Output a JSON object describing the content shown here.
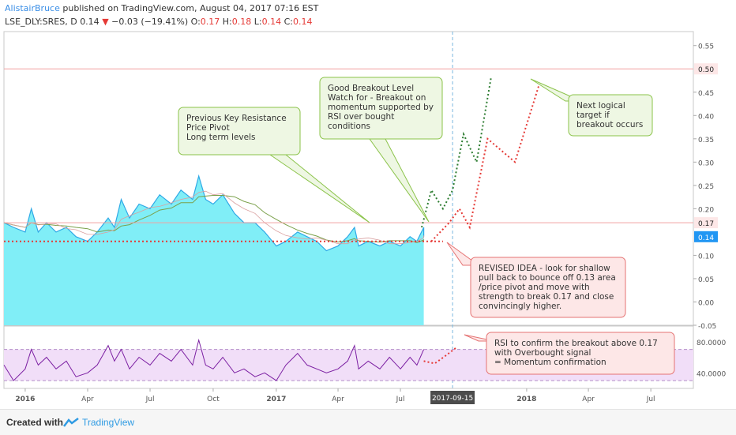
{
  "header": {
    "author": "AlistairBruce",
    "published_text": "published on TradingView.com, August 04, 2017 07:16 EST",
    "symbol": "LSE_DLY:SRES, D",
    "last": "0.14",
    "change_arrow": "▼",
    "change": "−0.03 (−19.41%)",
    "o_label": "O:",
    "o_value": "0.17",
    "h_label": "H:",
    "h_value": "0.18",
    "l_label": "L:",
    "l_value": "0.14",
    "c_label": "C:",
    "c_value": "0.14"
  },
  "footer": {
    "created_with": "Created with",
    "brand": "TradingView"
  },
  "colors": {
    "price_fill": "#80eef7",
    "price_line": "#2fa9e6",
    "rsi_line": "#7b1fa2",
    "rsi_band": "#f1def8",
    "projection_red": "#e53935",
    "projection_green": "#2e7d32",
    "marker_gray": "#4c4c4c"
  },
  "chart_data": {
    "type": "area",
    "x_ticks": [
      {
        "label": "2016",
        "date": "2016-01-01",
        "bold": true
      },
      {
        "label": "Apr",
        "date": "2016-04-01",
        "bold": false
      },
      {
        "label": "Jul",
        "date": "2016-07-01",
        "bold": false
      },
      {
        "label": "Oct",
        "date": "2016-10-01",
        "bold": false
      },
      {
        "label": "2017",
        "date": "2017-01-01",
        "bold": true
      },
      {
        "label": "Apr",
        "date": "2017-04-01",
        "bold": false
      },
      {
        "label": "Jul",
        "date": "2017-07-01",
        "bold": false
      },
      {
        "label": "2018",
        "date": "2018-01-01",
        "bold": true
      },
      {
        "label": "Apr",
        "date": "2018-04-01",
        "bold": false
      },
      {
        "label": "Jul",
        "date": "2018-07-01",
        "bold": false
      }
    ],
    "y_ticks": [
      "0.55",
      "0.45",
      "0.40",
      "0.35",
      "0.30",
      "0.25",
      "0.20",
      "0.10",
      "0.05",
      "0.00",
      "-0.05"
    ],
    "ylim": [
      -0.05,
      0.58
    ],
    "price_series": {
      "name": "",
      "points": [
        [
          "2015-12-01",
          0.17
        ],
        [
          "2015-12-15",
          0.16
        ],
        [
          "2016-01-01",
          0.15
        ],
        [
          "2016-01-10",
          0.2
        ],
        [
          "2016-01-20",
          0.15
        ],
        [
          "2016-02-01",
          0.17
        ],
        [
          "2016-02-15",
          0.15
        ],
        [
          "2016-03-01",
          0.16
        ],
        [
          "2016-03-15",
          0.14
        ],
        [
          "2016-04-01",
          0.13
        ],
        [
          "2016-04-15",
          0.15
        ],
        [
          "2016-05-01",
          0.18
        ],
        [
          "2016-05-10",
          0.16
        ],
        [
          "2016-05-20",
          0.22
        ],
        [
          "2016-06-01",
          0.18
        ],
        [
          "2016-06-15",
          0.21
        ],
        [
          "2016-07-01",
          0.2
        ],
        [
          "2016-07-15",
          0.23
        ],
        [
          "2016-08-01",
          0.21
        ],
        [
          "2016-08-15",
          0.24
        ],
        [
          "2016-09-01",
          0.22
        ],
        [
          "2016-09-10",
          0.27
        ],
        [
          "2016-09-20",
          0.22
        ],
        [
          "2016-10-01",
          0.21
        ],
        [
          "2016-10-15",
          0.23
        ],
        [
          "2016-11-01",
          0.19
        ],
        [
          "2016-11-15",
          0.17
        ],
        [
          "2016-12-01",
          0.17
        ],
        [
          "2016-12-15",
          0.15
        ],
        [
          "2017-01-01",
          0.12
        ],
        [
          "2017-01-15",
          0.13
        ],
        [
          "2017-02-01",
          0.15
        ],
        [
          "2017-02-15",
          0.14
        ],
        [
          "2017-03-01",
          0.13
        ],
        [
          "2017-03-15",
          0.11
        ],
        [
          "2017-04-01",
          0.12
        ],
        [
          "2017-04-15",
          0.14
        ],
        [
          "2017-04-25",
          0.16
        ],
        [
          "2017-05-01",
          0.12
        ],
        [
          "2017-05-15",
          0.13
        ],
        [
          "2017-06-01",
          0.12
        ],
        [
          "2017-06-15",
          0.13
        ],
        [
          "2017-07-01",
          0.12
        ],
        [
          "2017-07-15",
          0.14
        ],
        [
          "2017-07-25",
          0.13
        ],
        [
          "2017-08-04",
          0.16
        ],
        [
          "2017-08-04",
          0.14
        ]
      ]
    },
    "horizontal_lines": [
      {
        "label": "0.50",
        "value": 0.5,
        "color": "#f2a0a0"
      },
      {
        "label": "0.17",
        "value": 0.17,
        "color": "#f2a0a0"
      }
    ],
    "price_marker": {
      "label": "0.14",
      "value": 0.14
    },
    "support_line": {
      "value": 0.13,
      "from": "2015-12-01",
      "to": "2017-09-01",
      "style": "dotted-red"
    },
    "cursor_date": "2017-09-15",
    "green_projection": [
      [
        "2017-08-01",
        0.16
      ],
      [
        "2017-08-15",
        0.24
      ],
      [
        "2017-09-01",
        0.2
      ],
      [
        "2017-09-15",
        0.24
      ],
      [
        "2017-10-01",
        0.36
      ],
      [
        "2017-10-20",
        0.3
      ],
      [
        "2017-11-10",
        0.48
      ]
    ],
    "red_projection": [
      [
        "2017-08-15",
        0.13
      ],
      [
        "2017-09-10",
        0.17
      ],
      [
        "2017-09-25",
        0.2
      ],
      [
        "2017-10-10",
        0.16
      ],
      [
        "2017-11-05",
        0.35
      ],
      [
        "2017-12-15",
        0.3
      ],
      [
        "2018-01-20",
        0.47
      ]
    ],
    "rsi": {
      "yticks": [
        "80.0000",
        "40.0000"
      ],
      "ylim": [
        20,
        100
      ],
      "band": [
        30,
        70
      ],
      "points": [
        [
          "2015-12-01",
          50
        ],
        [
          "2015-12-15",
          30
        ],
        [
          "2016-01-01",
          45
        ],
        [
          "2016-01-10",
          70
        ],
        [
          "2016-01-20",
          50
        ],
        [
          "2016-02-01",
          60
        ],
        [
          "2016-02-15",
          45
        ],
        [
          "2016-03-01",
          55
        ],
        [
          "2016-03-15",
          35
        ],
        [
          "2016-04-01",
          40
        ],
        [
          "2016-04-15",
          50
        ],
        [
          "2016-05-01",
          75
        ],
        [
          "2016-05-10",
          55
        ],
        [
          "2016-05-20",
          70
        ],
        [
          "2016-06-01",
          45
        ],
        [
          "2016-06-15",
          60
        ],
        [
          "2016-07-01",
          50
        ],
        [
          "2016-07-15",
          65
        ],
        [
          "2016-08-01",
          55
        ],
        [
          "2016-08-15",
          70
        ],
        [
          "2016-09-01",
          50
        ],
        [
          "2016-09-10",
          82
        ],
        [
          "2016-09-20",
          50
        ],
        [
          "2016-10-01",
          45
        ],
        [
          "2016-10-15",
          60
        ],
        [
          "2016-11-01",
          40
        ],
        [
          "2016-11-15",
          45
        ],
        [
          "2016-12-01",
          35
        ],
        [
          "2016-12-15",
          40
        ],
        [
          "2017-01-01",
          30
        ],
        [
          "2017-01-15",
          50
        ],
        [
          "2017-02-01",
          65
        ],
        [
          "2017-02-15",
          50
        ],
        [
          "2017-03-01",
          45
        ],
        [
          "2017-03-15",
          40
        ],
        [
          "2017-04-01",
          45
        ],
        [
          "2017-04-15",
          55
        ],
        [
          "2017-04-25",
          75
        ],
        [
          "2017-05-01",
          45
        ],
        [
          "2017-05-15",
          55
        ],
        [
          "2017-06-01",
          45
        ],
        [
          "2017-06-15",
          60
        ],
        [
          "2017-07-01",
          45
        ],
        [
          "2017-07-15",
          60
        ],
        [
          "2017-07-25",
          50
        ],
        [
          "2017-08-04",
          70
        ]
      ],
      "projection": [
        [
          "2017-08-04",
          55
        ],
        [
          "2017-08-20",
          52
        ],
        [
          "2017-09-05",
          62
        ],
        [
          "2017-09-20",
          72
        ]
      ]
    },
    "annotations": [
      {
        "id": "resistance",
        "lines": [
          "Previous Key Resistance",
          "Price Pivot",
          "Long term levels"
        ]
      },
      {
        "id": "breakout",
        "lines": [
          "Good Breakout Level",
          "Watch for - Breakout on",
          "momentum supported by",
          "RSI over bought",
          "conditions"
        ]
      },
      {
        "id": "target",
        "lines": [
          "Next logical",
          "target if",
          "breakout occurs"
        ]
      },
      {
        "id": "revised",
        "lines": [
          "REVISED IDEA - look for shallow",
          "pull back to bounce off 0.13 area",
          "/price pivot and move with",
          "strength to break 0.17 and close",
          "convincingly higher."
        ]
      },
      {
        "id": "rsi_note",
        "lines": [
          "RSI to confirm the breakout above 0.17",
          "with Overbought signal",
          "= Momentum confirmation"
        ]
      }
    ],
    "cursor_label": "2017-09-15",
    "grid": false
  }
}
